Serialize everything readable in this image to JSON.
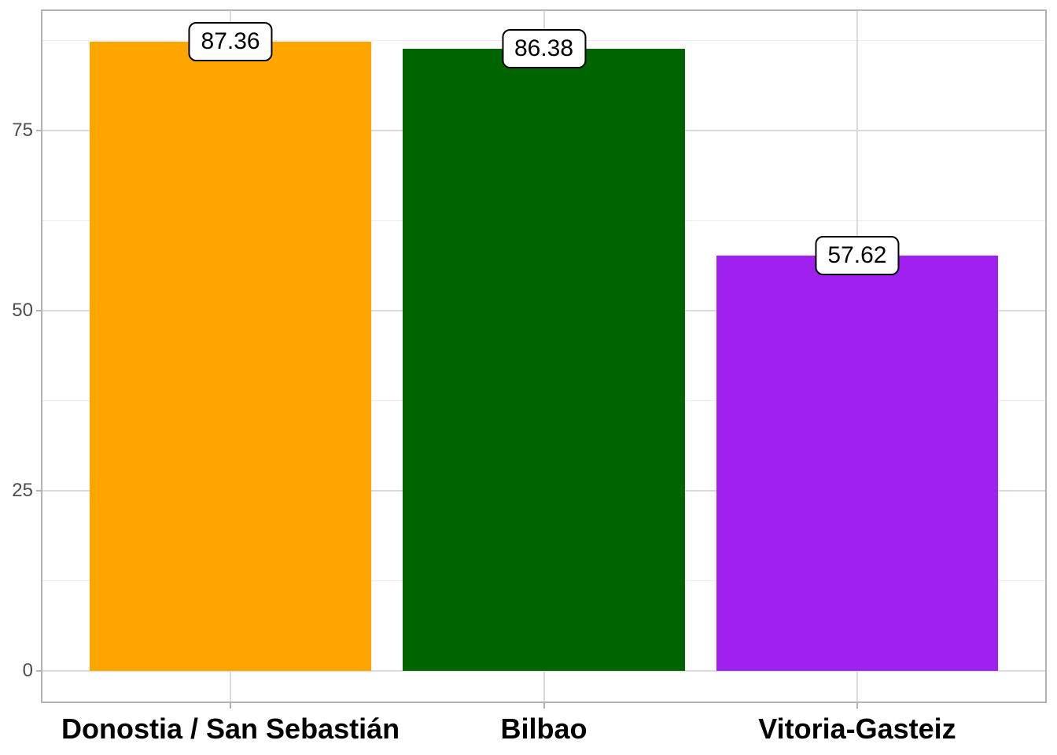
{
  "chart_data": {
    "type": "bar",
    "title": "",
    "xlabel": "",
    "ylabel": "",
    "categories": [
      "Donostia / San Sebastián",
      "Bilbao",
      "Vitoria-Gasteiz"
    ],
    "values": [
      87.36,
      86.38,
      57.62
    ],
    "value_labels": [
      "87.36",
      "86.38",
      "57.62"
    ],
    "bar_colors": [
      "#FFA500",
      "#006400",
      "#A020F0"
    ],
    "y_major_ticks": [
      0,
      25,
      50,
      75
    ],
    "y_major_tick_labels": [
      "0",
      "25",
      "50",
      "75"
    ],
    "y_minor_gridlines": [
      12.5,
      37.5,
      62.5,
      87.5
    ],
    "ylim": [
      -4.4,
      91.7
    ],
    "grid": "on",
    "legend_position": "none",
    "colors": {
      "background": "#FFFFFF",
      "panel_background": "#FFFFFF",
      "panel_border": "#B3B3B3",
      "major_grid": "#DBDBDB",
      "minor_grid": "#EDEDED",
      "tick_mark": "#B3B3B3",
      "axis_text": "#4D4D4D",
      "category_text": "#000000",
      "value_label_fill": "#FFFFFF",
      "value_label_border": "#000000",
      "value_label_text": "#000000"
    }
  }
}
